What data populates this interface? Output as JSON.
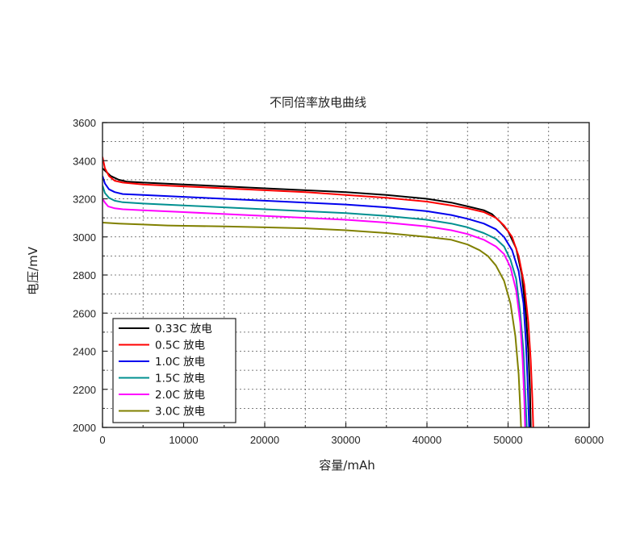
{
  "chart_data": {
    "type": "line",
    "title": "不同倍率放电曲线",
    "xlabel": "容量/mAh",
    "ylabel": "电压/mV",
    "xlim": [
      0,
      60000
    ],
    "ylim": [
      2000,
      3600
    ],
    "x_ticks": [
      0,
      10000,
      20000,
      30000,
      40000,
      50000,
      60000
    ],
    "y_ticks": [
      2000,
      2200,
      2400,
      2600,
      2800,
      3000,
      3200,
      3400,
      3600
    ],
    "grid": true,
    "legend_position": "bottom-left",
    "series": [
      {
        "name": "0.33C 放电",
        "color": "#000000",
        "points": [
          [
            0,
            3360
          ],
          [
            500,
            3340
          ],
          [
            1000,
            3320
          ],
          [
            2000,
            3300
          ],
          [
            3000,
            3290
          ],
          [
            5000,
            3285
          ],
          [
            10000,
            3275
          ],
          [
            15000,
            3265
          ],
          [
            20000,
            3255
          ],
          [
            25000,
            3245
          ],
          [
            30000,
            3235
          ],
          [
            35000,
            3220
          ],
          [
            40000,
            3200
          ],
          [
            43000,
            3180
          ],
          [
            45000,
            3160
          ],
          [
            47000,
            3140
          ],
          [
            48000,
            3120
          ],
          [
            49000,
            3080
          ],
          [
            50000,
            3030
          ],
          [
            51000,
            2940
          ],
          [
            51700,
            2800
          ],
          [
            52200,
            2600
          ],
          [
            52500,
            2400
          ],
          [
            52700,
            2200
          ],
          [
            52800,
            2000
          ]
        ]
      },
      {
        "name": "0.5C 放电",
        "color": "#ff0000",
        "points": [
          [
            0,
            3420
          ],
          [
            300,
            3360
          ],
          [
            800,
            3320
          ],
          [
            1500,
            3295
          ],
          [
            2500,
            3285
          ],
          [
            5000,
            3275
          ],
          [
            10000,
            3265
          ],
          [
            15000,
            3255
          ],
          [
            20000,
            3245
          ],
          [
            25000,
            3235
          ],
          [
            30000,
            3220
          ],
          [
            35000,
            3205
          ],
          [
            40000,
            3185
          ],
          [
            43000,
            3165
          ],
          [
            45000,
            3150
          ],
          [
            47000,
            3130
          ],
          [
            48500,
            3100
          ],
          [
            49500,
            3060
          ],
          [
            50500,
            3000
          ],
          [
            51300,
            2900
          ],
          [
            52000,
            2750
          ],
          [
            52500,
            2550
          ],
          [
            52800,
            2350
          ],
          [
            53000,
            2150
          ],
          [
            53100,
            2000
          ]
        ]
      },
      {
        "name": "1.0C 放电",
        "color": "#0000ee",
        "points": [
          [
            0,
            3320
          ],
          [
            300,
            3280
          ],
          [
            800,
            3250
          ],
          [
            1500,
            3235
          ],
          [
            2500,
            3225
          ],
          [
            5000,
            3220
          ],
          [
            10000,
            3210
          ],
          [
            15000,
            3200
          ],
          [
            20000,
            3190
          ],
          [
            25000,
            3180
          ],
          [
            30000,
            3170
          ],
          [
            35000,
            3155
          ],
          [
            40000,
            3135
          ],
          [
            43000,
            3115
          ],
          [
            45000,
            3095
          ],
          [
            47000,
            3070
          ],
          [
            48500,
            3040
          ],
          [
            49500,
            3000
          ],
          [
            50500,
            2930
          ],
          [
            51300,
            2820
          ],
          [
            51900,
            2650
          ],
          [
            52200,
            2450
          ],
          [
            52400,
            2250
          ],
          [
            52600,
            2000
          ]
        ]
      },
      {
        "name": "1.5C 放电",
        "color": "#009090",
        "points": [
          [
            0,
            3270
          ],
          [
            300,
            3230
          ],
          [
            800,
            3205
          ],
          [
            1500,
            3190
          ],
          [
            2500,
            3182
          ],
          [
            5000,
            3175
          ],
          [
            10000,
            3165
          ],
          [
            15000,
            3155
          ],
          [
            20000,
            3145
          ],
          [
            25000,
            3135
          ],
          [
            30000,
            3125
          ],
          [
            35000,
            3110
          ],
          [
            40000,
            3090
          ],
          [
            43000,
            3070
          ],
          [
            45000,
            3050
          ],
          [
            47000,
            3020
          ],
          [
            48500,
            2990
          ],
          [
            49500,
            2950
          ],
          [
            50300,
            2880
          ],
          [
            51000,
            2780
          ],
          [
            51500,
            2600
          ],
          [
            51900,
            2400
          ],
          [
            52100,
            2200
          ],
          [
            52300,
            2000
          ]
        ]
      },
      {
        "name": "2.0C 放电",
        "color": "#ff00ff",
        "points": [
          [
            0,
            3200
          ],
          [
            300,
            3180
          ],
          [
            700,
            3160
          ],
          [
            1500,
            3150
          ],
          [
            2500,
            3145
          ],
          [
            5000,
            3140
          ],
          [
            10000,
            3130
          ],
          [
            15000,
            3120
          ],
          [
            20000,
            3110
          ],
          [
            25000,
            3100
          ],
          [
            30000,
            3090
          ],
          [
            35000,
            3075
          ],
          [
            40000,
            3055
          ],
          [
            43000,
            3035
          ],
          [
            45000,
            3015
          ],
          [
            47000,
            2985
          ],
          [
            48500,
            2950
          ],
          [
            49500,
            2910
          ],
          [
            50300,
            2840
          ],
          [
            51000,
            2720
          ],
          [
            51500,
            2550
          ],
          [
            51800,
            2350
          ],
          [
            52000,
            2150
          ],
          [
            52100,
            2000
          ]
        ]
      },
      {
        "name": "3.0C 放电",
        "color": "#808000",
        "points": [
          [
            0,
            3075
          ],
          [
            2000,
            3070
          ],
          [
            5000,
            3065
          ],
          [
            8000,
            3060
          ],
          [
            10000,
            3058
          ],
          [
            15000,
            3055
          ],
          [
            20000,
            3050
          ],
          [
            25000,
            3045
          ],
          [
            30000,
            3035
          ],
          [
            35000,
            3020
          ],
          [
            40000,
            3000
          ],
          [
            43000,
            2985
          ],
          [
            45000,
            2960
          ],
          [
            46500,
            2930
          ],
          [
            47500,
            2900
          ],
          [
            48500,
            2850
          ],
          [
            49500,
            2770
          ],
          [
            50300,
            2650
          ],
          [
            50900,
            2480
          ],
          [
            51300,
            2280
          ],
          [
            51500,
            2100
          ],
          [
            51600,
            2000
          ]
        ]
      }
    ]
  }
}
